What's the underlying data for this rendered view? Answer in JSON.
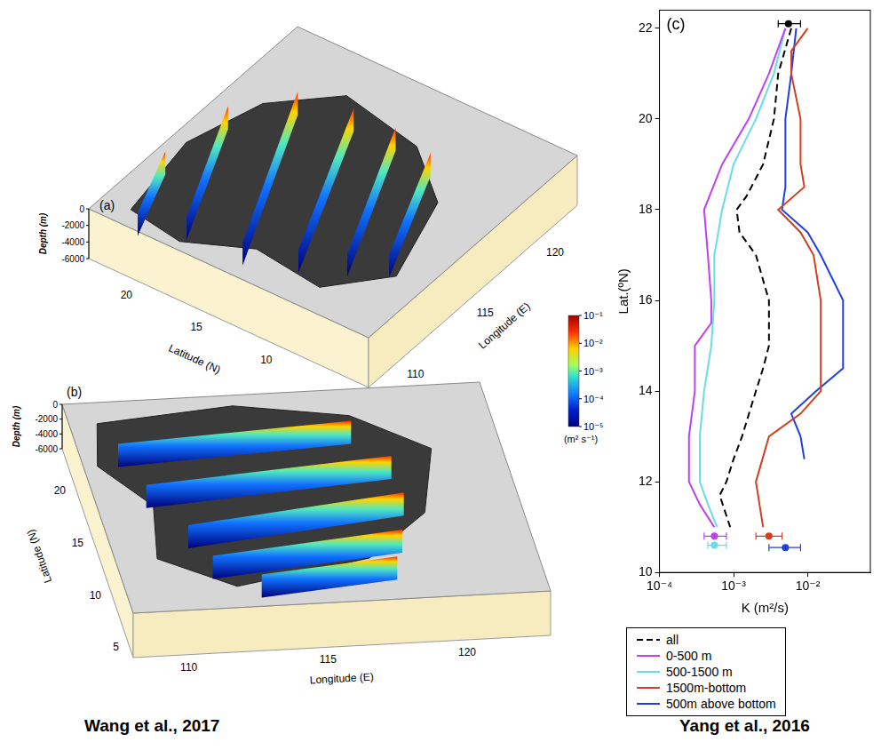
{
  "chart_data": {
    "type": "line",
    "panel_label": "(c)",
    "xlabel": "K (m²/s)",
    "ylabel": "Lat.(ºN)",
    "log": "x",
    "grid": false,
    "legend": "bottom",
    "xlim": [
      0.0001,
      0.07
    ],
    "xticks": [
      {
        "value": 0.0001,
        "label": "10⁻⁴"
      },
      {
        "value": 0.001,
        "label": "10⁻³"
      },
      {
        "value": 0.01,
        "label": "10⁻²"
      }
    ],
    "ylim": [
      10,
      22.4
    ],
    "yticks": [
      10,
      12,
      14,
      16,
      18,
      20,
      22
    ],
    "series": [
      {
        "name": "all",
        "color": "#000000",
        "line_style": "dashed",
        "y": [
          22,
          21,
          20,
          19,
          18.3,
          18,
          17.5,
          17,
          16,
          15,
          14.5,
          14,
          13,
          12.5,
          12,
          11.7,
          11
        ],
        "x": [
          0.006,
          0.004,
          0.0035,
          0.0025,
          0.0015,
          0.0011,
          0.0012,
          0.002,
          0.003,
          0.003,
          0.0025,
          0.002,
          0.0013,
          0.001,
          0.0008,
          0.00065,
          0.0009
        ],
        "mean": {
          "x": 0.0055,
          "y": 22.1,
          "x_low": 0.004,
          "x_high": 0.008
        }
      },
      {
        "name": "0-500 m",
        "color": "#c040f0",
        "line_style": "solid",
        "y": [
          22,
          21,
          20,
          19,
          18,
          17,
          16,
          15.5,
          15,
          14,
          13,
          12,
          11.5,
          11
        ],
        "x": [
          0.005,
          0.003,
          0.0016,
          0.0007,
          0.0004,
          0.00045,
          0.0005,
          0.0005,
          0.0003,
          0.0003,
          0.00025,
          0.00025,
          0.00035,
          0.00055
        ],
        "mean": {
          "x": 0.00055,
          "y": 10.8,
          "x_low": 0.0004,
          "x_high": 0.0008
        }
      },
      {
        "name": "500-1500 m",
        "color": "#66dde8",
        "line_style": "solid",
        "y": [
          22,
          21,
          20,
          19,
          18,
          17,
          16,
          15,
          14,
          13,
          12,
          11.5,
          11
        ],
        "x": [
          0.005,
          0.0035,
          0.002,
          0.001,
          0.0007,
          0.00055,
          0.00055,
          0.0005,
          0.0004,
          0.00035,
          0.00035,
          0.00045,
          0.0006
        ],
        "mean": {
          "x": 0.00055,
          "y": 10.6,
          "x_low": 0.00045,
          "x_high": 0.0008
        }
      },
      {
        "name": "1500m-bottom",
        "color": "#d04020",
        "line_style": "solid",
        "y": [
          22,
          21.5,
          21,
          20,
          19,
          18.5,
          18,
          17.5,
          17,
          16,
          15,
          14,
          13.5,
          13,
          12,
          11
        ],
        "x": [
          0.01,
          0.006,
          0.006,
          0.008,
          0.008,
          0.009,
          0.004,
          0.008,
          0.012,
          0.015,
          0.015,
          0.015,
          0.008,
          0.003,
          0.002,
          0.0025
        ],
        "mean": {
          "x": 0.003,
          "y": 10.8,
          "x_low": 0.002,
          "x_high": 0.0045
        }
      },
      {
        "name": "500m above bottom",
        "color": "#2040e0",
        "line_style": "solid",
        "y": [
          22,
          21,
          20,
          19,
          18.5,
          18,
          17.5,
          17,
          16,
          15,
          14.5,
          14,
          13.5,
          13,
          12.5
        ],
        "x": [
          0.007,
          0.006,
          0.005,
          0.005,
          0.005,
          0.0045,
          0.01,
          0.015,
          0.03,
          0.03,
          0.03,
          0.013,
          0.006,
          0.008,
          0.009
        ],
        "mean": {
          "x": 0.005,
          "y": 10.55,
          "x_low": 0.003,
          "x_high": 0.008
        }
      }
    ]
  },
  "maps": [
    {
      "label": "(a)",
      "xlabel": "Longitude (E)",
      "ylabel": "Latitude (N)",
      "zlabel": "Depth (m)",
      "xlim": [
        108,
        123
      ],
      "xticks": [
        110,
        115,
        120
      ],
      "ylim": [
        4,
        24
      ],
      "yticks": [
        20,
        15,
        10
      ],
      "zlim": [
        -6000,
        0
      ],
      "zticks": [
        0,
        -2000,
        -4000,
        -6000
      ]
    },
    {
      "label": "(b)",
      "xlabel": "Longitude (E)",
      "ylabel": "Latitude (N)",
      "zlabel": "Depth (m)",
      "xlim": [
        108,
        123
      ],
      "xticks": [
        110,
        115,
        120
      ],
      "ylim": [
        4,
        24
      ],
      "yticks": [
        20,
        15,
        10,
        5
      ],
      "zlim": [
        -6000,
        0
      ],
      "zticks": [
        0,
        -2000,
        -4000,
        -6000
      ]
    }
  ],
  "colorbar": {
    "label": "(m² s⁻¹)",
    "log": true,
    "range": [
      1e-05,
      0.1
    ],
    "ticks": [
      {
        "value": 0.1,
        "label": "10⁻¹"
      },
      {
        "value": 0.01,
        "label": "10⁻²"
      },
      {
        "value": 0.001,
        "label": "10⁻³"
      },
      {
        "value": 0.0001,
        "label": "10⁻⁴"
      },
      {
        "value": 1e-05,
        "label": "10⁻⁵"
      }
    ]
  },
  "captions": [
    "Wang et al., 2017",
    "Yang et al., 2016"
  ]
}
